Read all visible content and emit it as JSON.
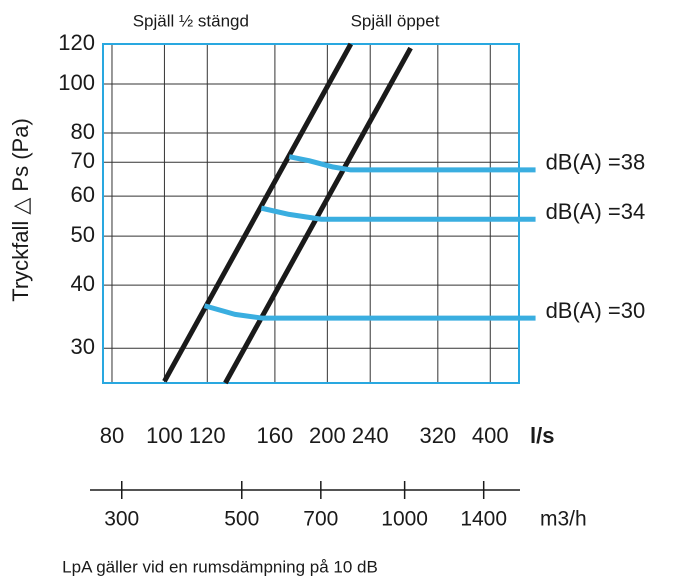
{
  "chart_data": {
    "type": "line",
    "ylabel": "Tryckfall △ Ps (Pa)",
    "xlabel": "l/s",
    "x2label": "m3/h",
    "note": "LpA gäller vid en rumsdämpning på 10 dB",
    "xscale": "log",
    "yscale": "log",
    "grid": true,
    "xlim": [
      77,
      452
    ],
    "ylim": [
      25.6,
      120
    ],
    "xticks": [
      80,
      100,
      120,
      160,
      200,
      240,
      320,
      400
    ],
    "yticks": [
      30,
      40,
      50,
      60,
      70,
      80,
      100,
      120
    ],
    "x2lim": [
      277,
      1627
    ],
    "x2ticks": [
      300,
      500,
      700,
      1000,
      1400
    ],
    "series": [
      {
        "name": "Spjäll ½ stängd",
        "color": "#1a1a1a",
        "x": [
          100,
          221
        ],
        "values": [
          25.8,
          120
        ]
      },
      {
        "name": "Spjäll öppet",
        "color": "#1a1a1a",
        "x": [
          129.6,
          285
        ],
        "values": [
          25.6,
          117.8
        ]
      },
      {
        "name": "dB(A) =38",
        "color": "#3aaee0",
        "x": [
          170,
          185,
          205,
          221,
          485
        ],
        "values": [
          71.8,
          70.5,
          68.5,
          67.6,
          67.6
        ]
      },
      {
        "name": "dB(A) =34",
        "color": "#3aaee0",
        "x": [
          151,
          170,
          195,
          485
        ],
        "values": [
          56.8,
          55.2,
          54,
          54
        ]
      },
      {
        "name": "dB(A) =30",
        "color": "#3aaee0",
        "x": [
          118.6,
          135,
          152,
          485
        ],
        "values": [
          36.4,
          35,
          34.4,
          34.4
        ]
      }
    ]
  }
}
